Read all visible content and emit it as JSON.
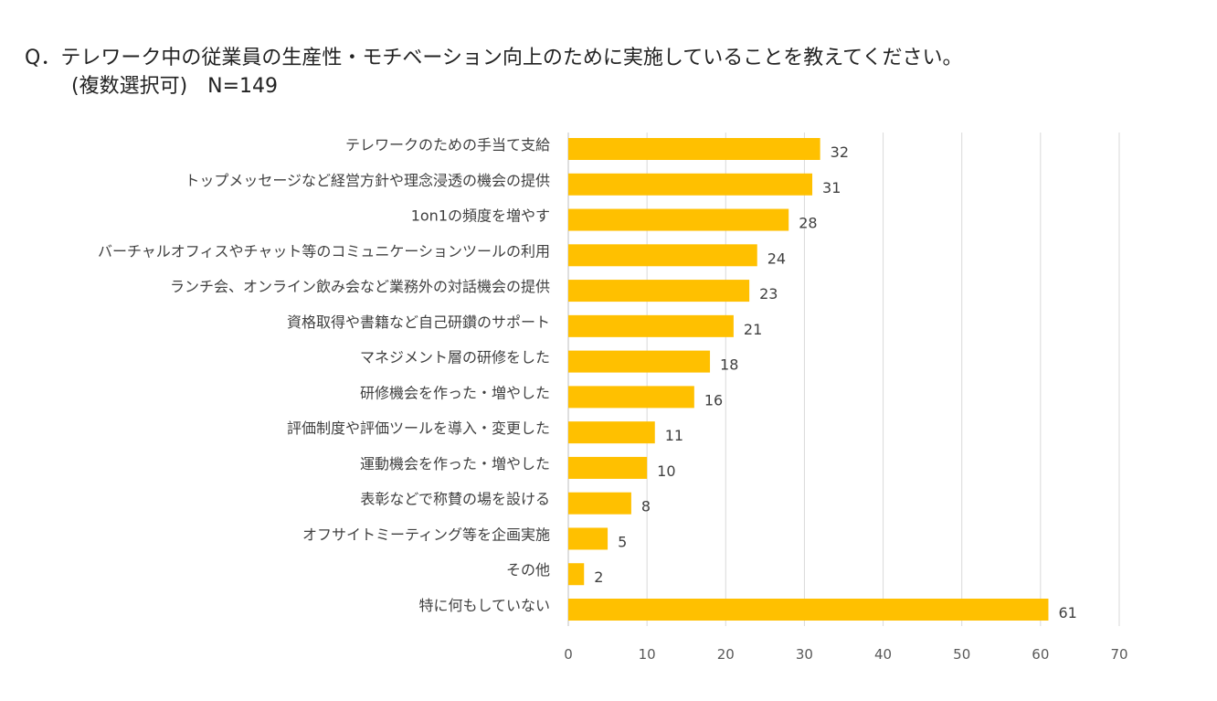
{
  "chart_data": {
    "type": "bar",
    "orientation": "horizontal",
    "title": "Q．テレワーク中の従業員の生産性・モチベーション向上のために実施していることを教えてください。",
    "subtitle": "(複数選択可)　N=149",
    "categories": [
      "テレワークのための手当て支給",
      "トップメッセージなど経営方針や理念浸透の機会の提供",
      "1on1の頻度を増やす",
      "バーチャルオフィスやチャット等のコミュニケーションツールの利用",
      "ランチ会、オンライン飲み会など業務外の対話機会の提供",
      "資格取得や書籍など自己研鑽のサポート",
      "マネジメント層の研修をした",
      "研修機会を作った・増やした",
      "評価制度や評価ツールを導入・変更した",
      "運動機会を作った・増やした",
      "表彰などで称賛の場を設ける",
      "オフサイトミーティング等を企画実施",
      "その他",
      "特に何もしていない"
    ],
    "values": [
      32,
      31,
      28,
      24,
      23,
      21,
      18,
      16,
      11,
      10,
      8,
      5,
      2,
      61
    ],
    "xlim": [
      0,
      70
    ],
    "xticks": [
      "0",
      "10",
      "20",
      "30",
      "40",
      "50",
      "60",
      "70"
    ],
    "grid": true,
    "data_labels": true,
    "bar_color": "#FFC000",
    "grid_color": "#D9D9D9"
  }
}
